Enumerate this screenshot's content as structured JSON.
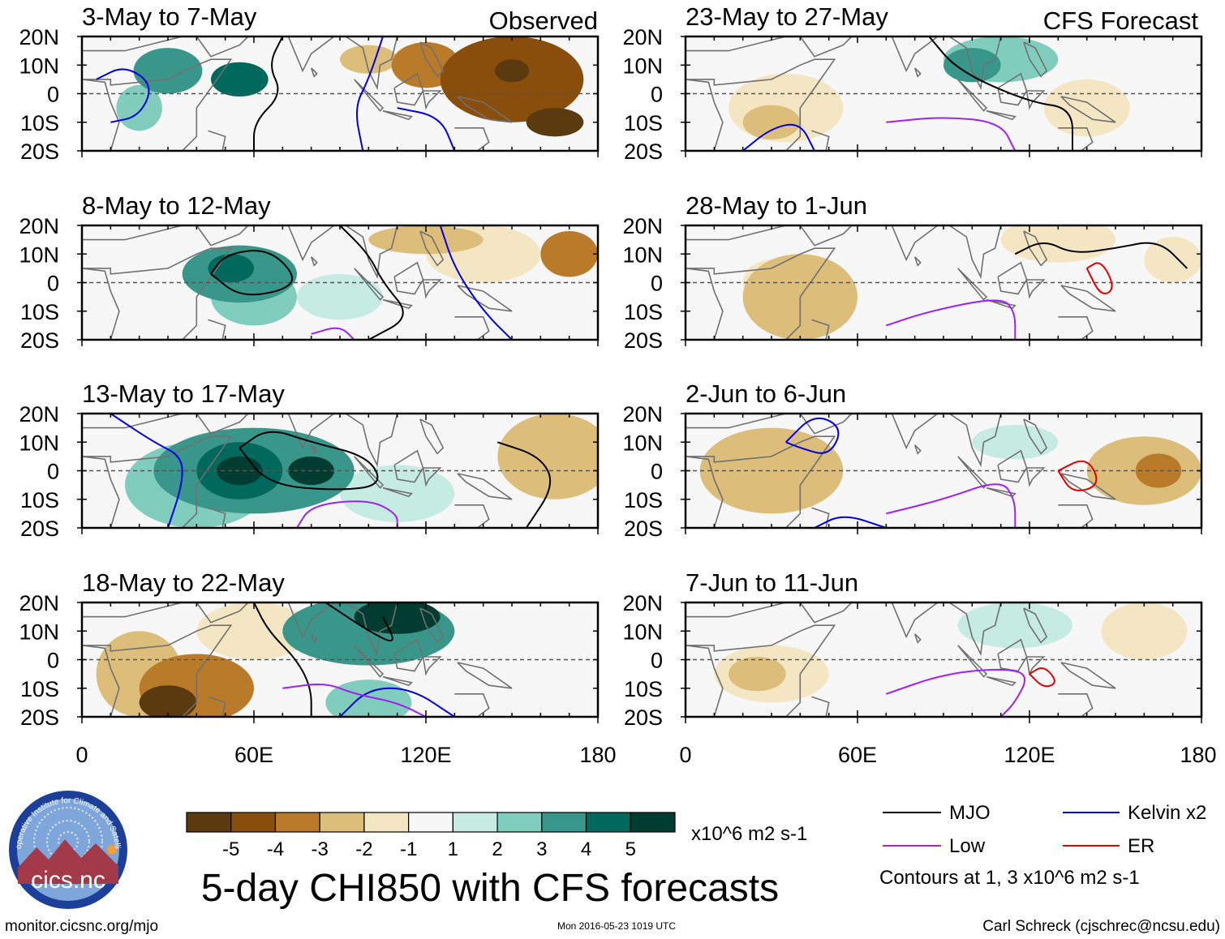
{
  "title": "5-day CHI850 with CFS forecasts",
  "observed_label": "Observed",
  "forecast_label": "CFS Forecast",
  "panels": [
    {
      "id": "obs1",
      "title": "3-May to 7-May"
    },
    {
      "id": "obs2",
      "title": "8-May to 12-May"
    },
    {
      "id": "obs3",
      "title": "13-May to 17-May"
    },
    {
      "id": "obs4",
      "title": "18-May to 22-May"
    },
    {
      "id": "fc1",
      "title": "23-May to 27-May"
    },
    {
      "id": "fc2",
      "title": "28-May to 1-Jun"
    },
    {
      "id": "fc3",
      "title": "2-Jun to 6-Jun"
    },
    {
      "id": "fc4",
      "title": "7-Jun to 11-Jun"
    }
  ],
  "lat_labels": [
    "20N",
    "10N",
    "0",
    "10S",
    "20S"
  ],
  "lon_labels": [
    "0",
    "60E",
    "120E",
    "180"
  ],
  "colorbar": {
    "colors": [
      "#5a3a0e",
      "#8a4e0c",
      "#b97a2a",
      "#dcbd7a",
      "#f5e6c3",
      "#f7f7f7",
      "#c6ebe2",
      "#80cdbe",
      "#39968a",
      "#00685c",
      "#003c30"
    ],
    "labels": [
      "-5",
      "-4",
      "-3",
      "-2",
      "-1",
      "1",
      "2",
      "3",
      "4",
      "5"
    ],
    "units": "x10^6 m2 s-1"
  },
  "legend": {
    "items": [
      {
        "label": "MJO",
        "color": "#000000"
      },
      {
        "label": "Kelvin x2",
        "color": "#0000e0"
      },
      {
        "label": "Low",
        "color": "#a020f0"
      },
      {
        "label": "ER",
        "color": "#e00000"
      }
    ],
    "note": "Contours at 1, 3 x10^6 m2 s-1"
  },
  "logo_text": "cics.nc",
  "logo_ring_text": "Cooperative Institute for Climate and Satellites",
  "footer": {
    "url": "monitor.cicsnc.org/mjo",
    "timestamp": "Mon 2016-05-23 1019 UTC",
    "author": "Carl Schreck (cjschrec@ncsu.edu)"
  },
  "map_data": {
    "extent": {
      "lon_min": 0,
      "lon_max": 180,
      "lat_min": -20,
      "lat_max": 20
    },
    "panels": [
      {
        "blobs": [
          [
            30,
            8,
            12,
            8,
            3
          ],
          [
            55,
            5,
            10,
            6,
            4
          ],
          [
            20,
            -5,
            8,
            8,
            2
          ],
          [
            120,
            10,
            12,
            8,
            -3
          ],
          [
            150,
            5,
            25,
            15,
            -4
          ],
          [
            165,
            -10,
            10,
            5,
            -5
          ],
          [
            150,
            8,
            6,
            4,
            -5
          ],
          [
            100,
            12,
            10,
            5,
            -2
          ]
        ],
        "contours": [
          {
            "c": "black",
            "pts": [
              [
                70,
                20
              ],
              [
                65,
                10
              ],
              [
                70,
                0
              ],
              [
                60,
                -10
              ],
              [
                60,
                -20
              ]
            ]
          },
          {
            "c": "blue",
            "pts": [
              [
                5,
                5
              ],
              [
                15,
                10
              ],
              [
                25,
                3
              ],
              [
                20,
                -8
              ],
              [
                10,
                -10
              ]
            ]
          },
          {
            "c": "blue",
            "pts": [
              [
                105,
                20
              ],
              [
                100,
                5
              ],
              [
                95,
                -5
              ],
              [
                98,
                -20
              ]
            ]
          },
          {
            "c": "blue",
            "pts": [
              [
                110,
                -5
              ],
              [
                125,
                -8
              ],
              [
                130,
                -20
              ]
            ]
          }
        ]
      },
      {
        "blobs": [
          [
            55,
            3,
            20,
            10,
            3
          ],
          [
            52,
            5,
            8,
            5,
            4
          ],
          [
            60,
            -5,
            15,
            10,
            2
          ],
          [
            90,
            -5,
            15,
            8,
            1
          ],
          [
            120,
            15,
            20,
            5,
            -2
          ],
          [
            170,
            10,
            10,
            8,
            -3
          ],
          [
            140,
            10,
            20,
            10,
            -1
          ]
        ],
        "contours": [
          {
            "c": "black",
            "pts": [
              [
                45,
                3
              ],
              [
                50,
                10
              ],
              [
                65,
                12
              ],
              [
                75,
                2
              ],
              [
                70,
                -3
              ],
              [
                55,
                -5
              ],
              [
                45,
                3
              ]
            ]
          },
          {
            "c": "black",
            "pts": [
              [
                90,
                20
              ],
              [
                100,
                10
              ],
              [
                105,
                0
              ],
              [
                115,
                -12
              ],
              [
                100,
                -20
              ]
            ]
          },
          {
            "c": "blue",
            "pts": [
              [
                125,
                20
              ],
              [
                130,
                5
              ],
              [
                140,
                -10
              ],
              [
                150,
                -20
              ]
            ]
          },
          {
            "c": "purple",
            "pts": [
              [
                80,
                -18
              ],
              [
                90,
                -15
              ],
              [
                95,
                -20
              ]
            ]
          }
        ]
      },
      {
        "blobs": [
          [
            60,
            0,
            35,
            15,
            3
          ],
          [
            55,
            0,
            15,
            10,
            4
          ],
          [
            55,
            0,
            8,
            5,
            5
          ],
          [
            80,
            0,
            8,
            5,
            5
          ],
          [
            40,
            -5,
            25,
            15,
            2
          ],
          [
            110,
            -8,
            20,
            10,
            1
          ],
          [
            165,
            5,
            20,
            15,
            -2
          ]
        ],
        "contours": [
          {
            "c": "black",
            "pts": [
              [
                55,
                8
              ],
              [
                65,
                15
              ],
              [
                80,
                10
              ],
              [
                100,
                5
              ],
              [
                105,
                -5
              ],
              [
                90,
                -7
              ],
              [
                65,
                -5
              ],
              [
                55,
                8
              ]
            ]
          },
          {
            "c": "black",
            "pts": [
              [
                145,
                10
              ],
              [
                160,
                5
              ],
              [
                165,
                -5
              ],
              [
                155,
                -20
              ]
            ]
          },
          {
            "c": "blue",
            "pts": [
              [
                10,
                20
              ],
              [
                25,
                10
              ],
              [
                35,
                5
              ],
              [
                35,
                -5
              ],
              [
                30,
                -20
              ]
            ]
          },
          {
            "c": "purple",
            "pts": [
              [
                75,
                -20
              ],
              [
                80,
                -12
              ],
              [
                100,
                -10
              ],
              [
                110,
                -15
              ],
              [
                110,
                -20
              ]
            ]
          }
        ]
      },
      {
        "blobs": [
          [
            40,
            -10,
            20,
            12,
            -3
          ],
          [
            30,
            -15,
            10,
            6,
            -5
          ],
          [
            20,
            -5,
            15,
            15,
            -2
          ],
          [
            100,
            10,
            30,
            12,
            3
          ],
          [
            110,
            15,
            15,
            6,
            5
          ],
          [
            100,
            -15,
            15,
            8,
            2
          ],
          [
            60,
            10,
            20,
            10,
            -1
          ]
        ],
        "contours": [
          {
            "c": "black",
            "pts": [
              [
                60,
                20
              ],
              [
                65,
                10
              ],
              [
                75,
                0
              ],
              [
                80,
                -10
              ],
              [
                80,
                -20
              ]
            ]
          },
          {
            "c": "black",
            "pts": [
              [
                85,
                20
              ],
              [
                100,
                10
              ],
              [
                110,
                5
              ],
              [
                105,
                15
              ]
            ]
          },
          {
            "c": "blue",
            "pts": [
              [
                90,
                -20
              ],
              [
                100,
                -10
              ],
              [
                115,
                -10
              ],
              [
                130,
                -20
              ]
            ]
          },
          {
            "c": "purple",
            "pts": [
              [
                70,
                -10
              ],
              [
                85,
                -8
              ],
              [
                95,
                -12
              ],
              [
                110,
                -15
              ],
              [
                120,
                -20
              ]
            ]
          }
        ]
      },
      {
        "blobs": [
          [
            110,
            12,
            20,
            8,
            2
          ],
          [
            100,
            10,
            10,
            6,
            3
          ],
          [
            35,
            -5,
            20,
            12,
            -1
          ],
          [
            30,
            -10,
            10,
            6,
            -2
          ],
          [
            140,
            -5,
            15,
            10,
            -1
          ]
        ],
        "contours": [
          {
            "c": "black",
            "pts": [
              [
                85,
                20
              ],
              [
                95,
                8
              ],
              [
                120,
                -3
              ],
              [
                135,
                -5
              ],
              [
                135,
                -20
              ]
            ]
          },
          {
            "c": "purple",
            "pts": [
              [
                70,
                -10
              ],
              [
                90,
                -8
              ],
              [
                110,
                -10
              ],
              [
                115,
                -20
              ]
            ]
          },
          {
            "c": "blue",
            "pts": [
              [
                20,
                -20
              ],
              [
                30,
                -12
              ],
              [
                40,
                -10
              ],
              [
                45,
                -20
              ]
            ]
          }
        ]
      },
      {
        "blobs": [
          [
            40,
            -5,
            20,
            15,
            -2
          ],
          [
            30,
            0,
            10,
            8,
            -1
          ],
          [
            130,
            15,
            20,
            8,
            -1
          ],
          [
            170,
            8,
            10,
            8,
            -1
          ]
        ],
        "contours": [
          {
            "c": "black",
            "pts": [
              [
                115,
                10
              ],
              [
                125,
                15
              ],
              [
                135,
                10
              ],
              [
                150,
                12
              ],
              [
                165,
                15
              ],
              [
                175,
                5
              ]
            ]
          },
          {
            "c": "red",
            "pts": [
              [
                140,
                5
              ],
              [
                145,
                8
              ],
              [
                150,
                -2
              ],
              [
                145,
                -5
              ],
              [
                140,
                5
              ]
            ]
          },
          {
            "c": "purple",
            "pts": [
              [
                70,
                -15
              ],
              [
                85,
                -10
              ],
              [
                110,
                -5
              ],
              [
                115,
                -10
              ],
              [
                115,
                -20
              ]
            ]
          }
        ]
      },
      {
        "blobs": [
          [
            30,
            0,
            25,
            15,
            -2
          ],
          [
            40,
            -5,
            10,
            6,
            -1
          ],
          [
            160,
            0,
            20,
            12,
            -2
          ],
          [
            165,
            0,
            8,
            6,
            -3
          ],
          [
            115,
            10,
            15,
            6,
            1
          ]
        ],
        "contours": [
          {
            "c": "blue",
            "pts": [
              [
                35,
                10
              ],
              [
                45,
                20
              ],
              [
                55,
                15
              ],
              [
                50,
                5
              ],
              [
                40,
                8
              ],
              [
                35,
                10
              ]
            ]
          },
          {
            "c": "red",
            "pts": [
              [
                130,
                0
              ],
              [
                140,
                5
              ],
              [
                145,
                -5
              ],
              [
                135,
                -8
              ],
              [
                130,
                0
              ]
            ]
          },
          {
            "c": "purple",
            "pts": [
              [
                70,
                -15
              ],
              [
                90,
                -10
              ],
              [
                110,
                -3
              ],
              [
                115,
                -10
              ],
              [
                115,
                -20
              ]
            ]
          },
          {
            "c": "blue",
            "pts": [
              [
                45,
                -20
              ],
              [
                55,
                -15
              ],
              [
                70,
                -20
              ]
            ]
          }
        ]
      },
      {
        "blobs": [
          [
            30,
            -5,
            20,
            10,
            -1
          ],
          [
            25,
            -5,
            10,
            6,
            -2
          ],
          [
            115,
            12,
            20,
            8,
            1
          ],
          [
            160,
            10,
            15,
            10,
            -1
          ]
        ],
        "contours": [
          {
            "c": "purple",
            "pts": [
              [
                70,
                -12
              ],
              [
                90,
                -5
              ],
              [
                110,
                -3
              ],
              [
                120,
                -5
              ],
              [
                115,
                -15
              ],
              [
                110,
                -20
              ]
            ]
          },
          {
            "c": "red",
            "pts": [
              [
                120,
                -5
              ],
              [
                125,
                -2
              ],
              [
                130,
                -8
              ],
              [
                125,
                -10
              ],
              [
                120,
                -5
              ]
            ]
          }
        ]
      }
    ]
  }
}
